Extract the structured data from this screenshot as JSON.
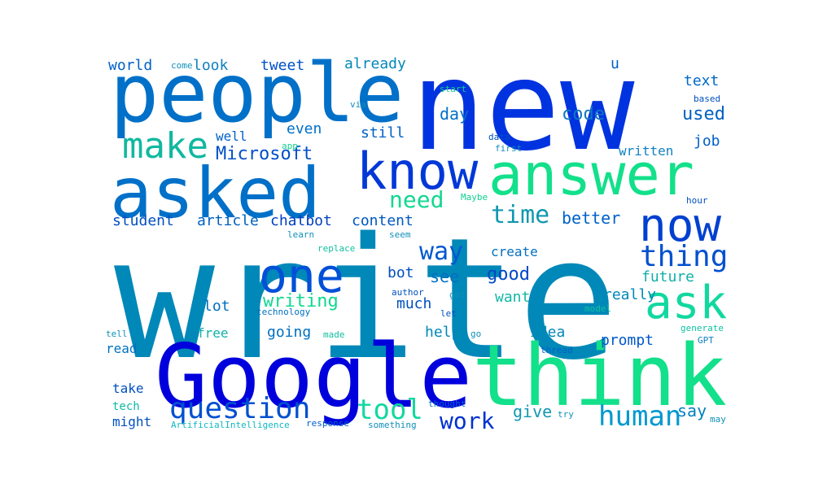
{
  "palette": {
    "blue": "#0033e0",
    "mid_blue": "#0070c8",
    "teal": "#0088b8",
    "green": "#12e08a",
    "royal": "#0000dd"
  },
  "words": [
    {
      "text": "write",
      "color": "#0088b8",
      "weight": 100
    },
    {
      "text": "new",
      "color": "#0033e0",
      "weight": 72
    },
    {
      "text": "people",
      "color": "#0070c8",
      "weight": 48
    },
    {
      "text": "Google",
      "color": "#0000dd",
      "weight": 56
    },
    {
      "text": "think",
      "color": "#12e08a",
      "weight": 54
    },
    {
      "text": "asked",
      "color": "#0070c8",
      "weight": 50
    },
    {
      "text": "answer",
      "color": "#12e08a",
      "weight": 42
    },
    {
      "text": "know",
      "color": "#0038d8",
      "weight": 32
    },
    {
      "text": "now",
      "color": "#0040d0",
      "weight": 30
    },
    {
      "text": "one",
      "color": "#0050d8",
      "weight": 30
    },
    {
      "text": "ask",
      "color": "#12d8a0",
      "weight": 28
    },
    {
      "text": "make",
      "color": "#10b8a0",
      "weight": 22
    },
    {
      "text": "question",
      "color": "#0050d0",
      "weight": 22
    },
    {
      "text": "human",
      "color": "#0098d0",
      "weight": 18
    },
    {
      "text": "thing",
      "color": "#0050d0",
      "weight": 18
    },
    {
      "text": "tool",
      "color": "#12d8a0",
      "weight": 18
    },
    {
      "text": "way",
      "color": "#0058d0",
      "weight": 16
    },
    {
      "text": "time",
      "color": "#1098b0",
      "weight": 15
    },
    {
      "text": "need",
      "color": "#12d890",
      "weight": 14
    },
    {
      "text": "work",
      "color": "#0030d0",
      "weight": 14
    },
    {
      "text": "code",
      "color": "#1078c0",
      "weight": 11
    },
    {
      "text": "used",
      "color": "#0060c0",
      "weight": 11
    },
    {
      "text": "writing",
      "color": "#10d890",
      "weight": 11
    },
    {
      "text": "Microsoft",
      "color": "#0050c8",
      "weight": 10
    },
    {
      "text": "good",
      "color": "#0048c8",
      "weight": 10
    },
    {
      "text": "better",
      "color": "#0060c8",
      "weight": 10
    },
    {
      "text": "see",
      "color": "#0070c0",
      "weight": 10
    },
    {
      "text": "give",
      "color": "#1098b0",
      "weight": 10
    },
    {
      "text": "say",
      "color": "#0080c0",
      "weight": 10
    },
    {
      "text": "text",
      "color": "#0068c8",
      "weight": 9
    },
    {
      "text": "day",
      "color": "#0070c8",
      "weight": 9
    },
    {
      "text": "even",
      "color": "#0070c8",
      "weight": 9
    },
    {
      "text": "student",
      "color": "#0050c0",
      "weight": 9
    },
    {
      "text": "article",
      "color": "#0060c0",
      "weight": 9
    },
    {
      "text": "chatbot",
      "color": "#0040c0",
      "weight": 9
    },
    {
      "text": "content",
      "color": "#0058c0",
      "weight": 9
    },
    {
      "text": "tweet",
      "color": "#0050c8",
      "weight": 9
    },
    {
      "text": "look",
      "color": "#1080c0",
      "weight": 9
    },
    {
      "text": "world",
      "color": "#0060c8",
      "weight": 8
    },
    {
      "text": "already",
      "color": "#0088b8",
      "weight": 8
    },
    {
      "text": "still",
      "color": "#0060c8",
      "weight": 8
    },
    {
      "text": "job",
      "color": "#0060c8",
      "weight": 8
    },
    {
      "text": "written",
      "color": "#1080c0",
      "weight": 8
    },
    {
      "text": "well",
      "color": "#0060c8",
      "weight": 8
    },
    {
      "text": "bot",
      "color": "#0050c0",
      "weight": 8
    },
    {
      "text": "much",
      "color": "#0050c0",
      "weight": 8
    },
    {
      "text": "want",
      "color": "#10b8a8",
      "weight": 8
    },
    {
      "text": "really",
      "color": "#0088b8",
      "weight": 8
    },
    {
      "text": "future",
      "color": "#10b0a8",
      "weight": 8
    },
    {
      "text": "create",
      "color": "#0070c0",
      "weight": 8
    },
    {
      "text": "lot",
      "color": "#0070c0",
      "weight": 8
    },
    {
      "text": "going",
      "color": "#0070c0",
      "weight": 8
    },
    {
      "text": "help",
      "color": "#0088b8",
      "weight": 8
    },
    {
      "text": "idea",
      "color": "#0088b8",
      "weight": 8
    },
    {
      "text": "prompt",
      "color": "#0058c8",
      "weight": 8
    },
    {
      "text": "read",
      "color": "#0070c0",
      "weight": 8
    },
    {
      "text": "take",
      "color": "#0050c0",
      "weight": 8
    },
    {
      "text": "might",
      "color": "#0050c0",
      "weight": 7
    },
    {
      "text": "free",
      "color": "#10b0a8",
      "weight": 7
    },
    {
      "text": "tech",
      "color": "#10b8a8",
      "weight": 7
    },
    {
      "text": "u",
      "color": "#0060c8",
      "weight": 7
    },
    {
      "text": "come",
      "color": "#1090b8",
      "weight": 4
    },
    {
      "text": "start",
      "color": "#10d090",
      "weight": 4
    },
    {
      "text": "via",
      "color": "#1090b8",
      "weight": 4
    },
    {
      "text": "based",
      "color": "#0050c0",
      "weight": 4
    },
    {
      "text": "app",
      "color": "#10d090",
      "weight": 4
    },
    {
      "text": "data",
      "color": "#0050c0",
      "weight": 4
    },
    {
      "text": "first",
      "color": "#1090b8",
      "weight": 4
    },
    {
      "text": "Maybe",
      "color": "#10d090",
      "weight": 4
    },
    {
      "text": "hour",
      "color": "#0050c0",
      "weight": 4
    },
    {
      "text": "learn",
      "color": "#1090b8",
      "weight": 4
    },
    {
      "text": "seem",
      "color": "#1090b8",
      "weight": 4
    },
    {
      "text": "replace",
      "color": "#10c0a0",
      "weight": 4
    },
    {
      "text": "author",
      "color": "#0050c0",
      "weight": 4
    },
    {
      "text": "got",
      "color": "#1090b8",
      "weight": 4
    },
    {
      "text": "technology",
      "color": "#0070c0",
      "weight": 4
    },
    {
      "text": "let",
      "color": "#0050c0",
      "weight": 4
    },
    {
      "text": "model",
      "color": "#10c0a0",
      "weight": 4
    },
    {
      "text": "tell",
      "color": "#1090b8",
      "weight": 4
    },
    {
      "text": "made",
      "color": "#10c0a0",
      "weight": 4
    },
    {
      "text": "go",
      "color": "#1090b8",
      "weight": 4
    },
    {
      "text": "generate",
      "color": "#10c0a0",
      "weight": 4
    },
    {
      "text": "GPT",
      "color": "#1080c0",
      "weight": 4
    },
    {
      "text": "thread",
      "color": "#0060c8",
      "weight": 4
    },
    {
      "text": "thought",
      "color": "#0060c8",
      "weight": 4
    },
    {
      "text": "try",
      "color": "#1090b8",
      "weight": 4
    },
    {
      "text": "ArtificialIntelligence",
      "color": "#10b8c0",
      "weight": 4
    },
    {
      "text": "response",
      "color": "#0060c8",
      "weight": 4
    },
    {
      "text": "something",
      "color": "#1090b8",
      "weight": 4
    },
    {
      "text": "may",
      "color": "#1090b8",
      "weight": 4
    }
  ]
}
